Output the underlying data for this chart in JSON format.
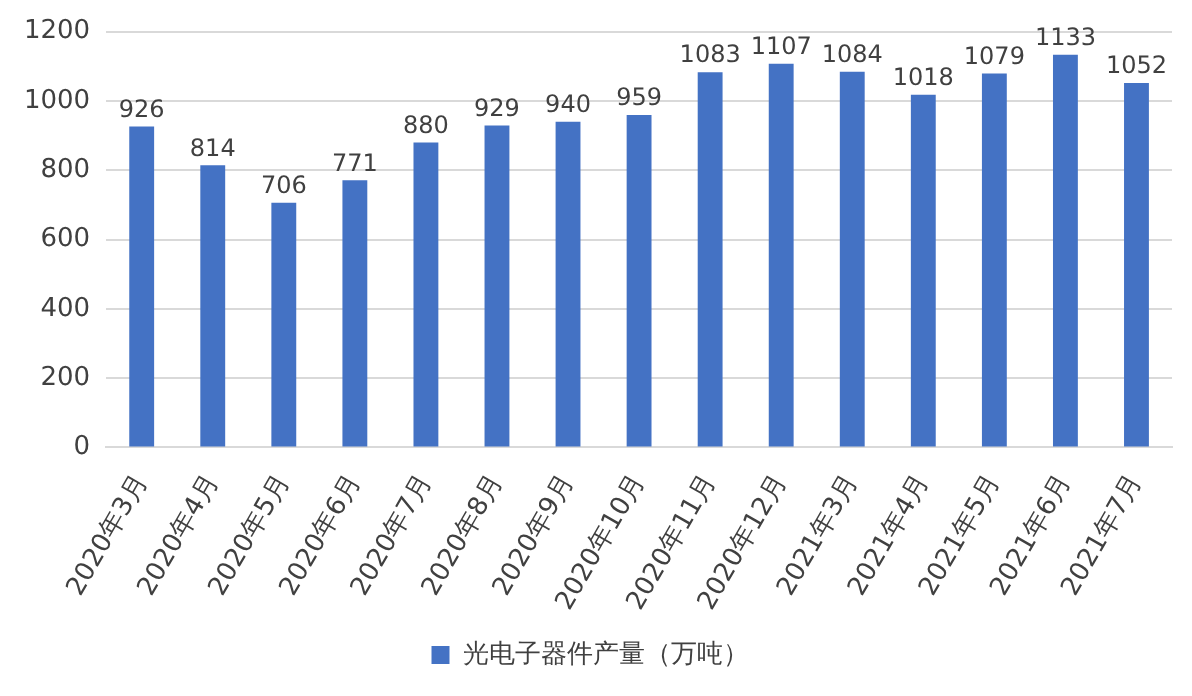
{
  "chart_data": {
    "type": "bar",
    "categories": [
      "2020年3月",
      "2020年4月",
      "2020年5月",
      "2020年6月",
      "2020年7月",
      "2020年8月",
      "2020年9月",
      "2020年10月",
      "2020年11月",
      "2020年12月",
      "2021年3月",
      "2021年4月",
      "2021年5月",
      "2021年6月",
      "2021年7月"
    ],
    "series": [
      {
        "name": "光电子器件产量（万吨）",
        "color": "#4472c4",
        "values": [
          926,
          814,
          706,
          771,
          880,
          929,
          940,
          959,
          1083,
          1107,
          1084,
          1018,
          1079,
          1133,
          1052
        ]
      }
    ],
    "ylim": [
      0,
      1200
    ],
    "yticks": [
      0,
      200,
      400,
      600,
      800,
      1000,
      1200
    ],
    "grid": "y",
    "legend": "bottom",
    "data_labels": true
  }
}
